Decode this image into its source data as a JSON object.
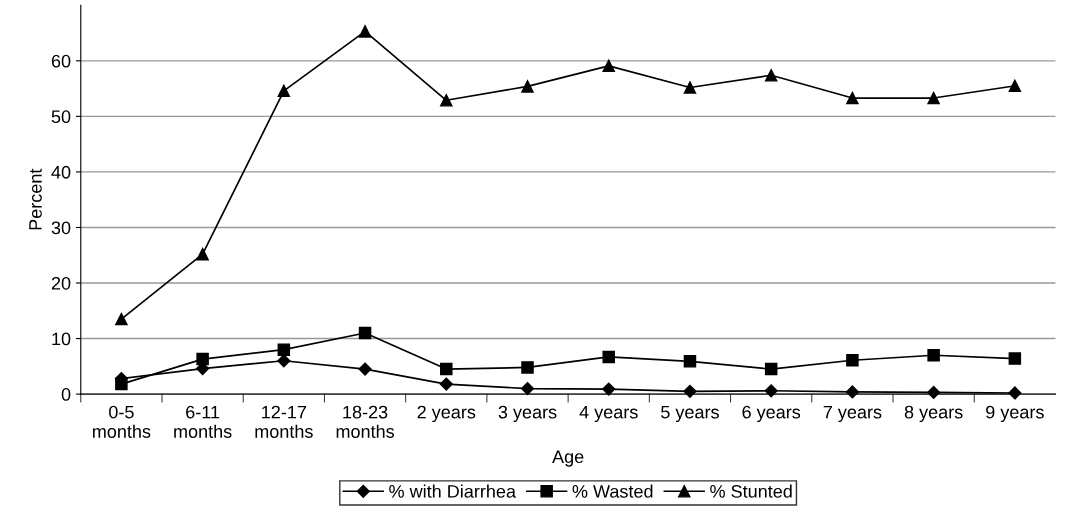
{
  "chart_data": {
    "type": "line",
    "xlabel": "Age",
    "ylabel": "Percent",
    "categories": [
      "0-5\nmonths",
      "6-11\nmonths",
      "12-17\nmonths",
      "18-23\nmonths",
      "2 years",
      "3 years",
      "4 years",
      "5 years",
      "6 years",
      "7 years",
      "8 years",
      "9 years"
    ],
    "series": [
      {
        "name": "% with Diarrhea",
        "color": "#000000",
        "marker": "diamond",
        "values": [
          2.8,
          4.6,
          6.0,
          4.5,
          1.8,
          1.0,
          0.9,
          0.5,
          0.6,
          0.4,
          0.3,
          0.2
        ]
      },
      {
        "name": "% Wasted",
        "color": "#000000",
        "marker": "square",
        "values": [
          1.8,
          6.3,
          8.0,
          11.0,
          4.5,
          4.8,
          6.7,
          5.9,
          4.5,
          6.1,
          7.0,
          6.4
        ]
      },
      {
        "name": "% Stunted",
        "color": "#000000",
        "marker": "triangle",
        "values": [
          13.5,
          25.2,
          54.6,
          65.3,
          52.9,
          55.4,
          59.1,
          55.2,
          57.4,
          53.3,
          53.3,
          55.5
        ]
      }
    ],
    "ylim": [
      0,
      70
    ],
    "yticks": [
      0,
      10,
      20,
      30,
      40,
      50,
      60
    ],
    "grid": "y",
    "legend": "bottom"
  }
}
